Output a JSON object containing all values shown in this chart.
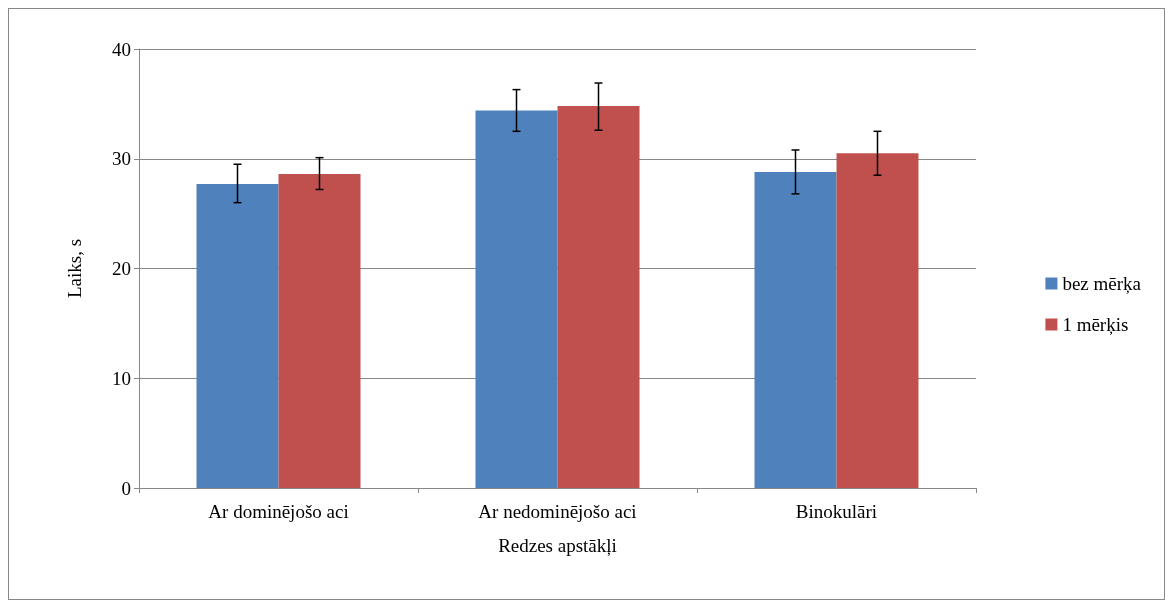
{
  "chart_data": {
    "type": "bar",
    "xlabel": "Redzes apstākļi",
    "ylabel": "Laiks, s",
    "categories": [
      "Ar dominējošo aci",
      "Ar nedominējošo aci",
      "Binokulāri"
    ],
    "series": [
      {
        "name": "bez mērķa",
        "color": "#4f81bd",
        "values": [
          27.7,
          34.4,
          28.8
        ],
        "errors": [
          [
            26.0,
            29.5
          ],
          [
            32.5,
            36.3
          ],
          [
            26.8,
            30.8
          ]
        ]
      },
      {
        "name": "1 mērķis",
        "color": "#c0504d",
        "values": [
          28.6,
          34.8,
          30.5
        ],
        "errors": [
          [
            27.2,
            30.1
          ],
          [
            32.6,
            36.9
          ],
          [
            28.5,
            32.5
          ]
        ]
      }
    ],
    "ylim": [
      0,
      40
    ],
    "yticks": [
      0,
      10,
      20,
      30,
      40
    ],
    "grid": "y",
    "legend": "right"
  }
}
